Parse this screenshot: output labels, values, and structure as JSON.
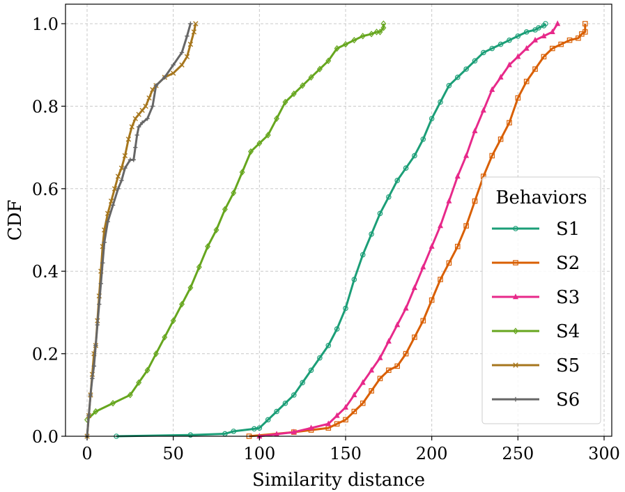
{
  "chart_data": {
    "type": "line",
    "title": "",
    "xlabel": "Similarity distance",
    "ylabel": "CDF",
    "xlim": [
      -12,
      300
    ],
    "ylim": [
      0,
      1.0
    ],
    "xticks": [
      0,
      50,
      100,
      150,
      200,
      250,
      300
    ],
    "yticks": [
      0.0,
      0.2,
      0.4,
      0.6,
      0.8,
      1.0
    ],
    "xtick_labels": [
      "0",
      "50",
      "100",
      "150",
      "200",
      "250",
      "300"
    ],
    "ytick_labels": [
      "0.0",
      "0.2",
      "0.4",
      "0.6",
      "0.8",
      "1.0"
    ],
    "grid": true,
    "legend": {
      "title": "Behaviors",
      "position": "center-right"
    },
    "series": [
      {
        "name": "S1",
        "color": "#1b9e77",
        "marker": "circle",
        "x": [
          17,
          60,
          80,
          85,
          97,
          100,
          105,
          110,
          115,
          120,
          125,
          130,
          135,
          140,
          145,
          150,
          155,
          160,
          165,
          170,
          175,
          180,
          185,
          190,
          195,
          200,
          205,
          210,
          215,
          220,
          225,
          230,
          235,
          240,
          245,
          250,
          255,
          260,
          262,
          265,
          266
        ],
        "y": [
          0.0,
          0.003,
          0.006,
          0.012,
          0.018,
          0.02,
          0.04,
          0.06,
          0.08,
          0.1,
          0.13,
          0.16,
          0.19,
          0.22,
          0.26,
          0.31,
          0.38,
          0.44,
          0.49,
          0.54,
          0.58,
          0.62,
          0.65,
          0.68,
          0.72,
          0.77,
          0.81,
          0.85,
          0.87,
          0.89,
          0.91,
          0.93,
          0.94,
          0.95,
          0.96,
          0.97,
          0.98,
          0.985,
          0.99,
          0.995,
          1.0
        ]
      },
      {
        "name": "S2",
        "color": "#d95f02",
        "marker": "square",
        "x": [
          94,
          120,
          130,
          140,
          145,
          150,
          155,
          160,
          165,
          170,
          175,
          180,
          185,
          190,
          195,
          200,
          205,
          210,
          215,
          220,
          225,
          230,
          235,
          240,
          245,
          250,
          255,
          260,
          265,
          270,
          275,
          280,
          285,
          287,
          289,
          289
        ],
        "y": [
          0.0,
          0.01,
          0.015,
          0.02,
          0.03,
          0.04,
          0.06,
          0.08,
          0.11,
          0.14,
          0.16,
          0.17,
          0.2,
          0.24,
          0.28,
          0.33,
          0.38,
          0.42,
          0.46,
          0.51,
          0.57,
          0.63,
          0.68,
          0.72,
          0.76,
          0.82,
          0.86,
          0.89,
          0.92,
          0.94,
          0.95,
          0.96,
          0.965,
          0.975,
          0.98,
          1.0
        ]
      },
      {
        "name": "S3",
        "color": "#e7298a",
        "marker": "triangle",
        "x": [
          100,
          110,
          120,
          130,
          140,
          145,
          150,
          155,
          160,
          165,
          170,
          175,
          180,
          185,
          190,
          195,
          200,
          205,
          210,
          215,
          220,
          225,
          230,
          235,
          240,
          245,
          250,
          255,
          260,
          265,
          270,
          273
        ],
        "y": [
          0.0,
          0.005,
          0.01,
          0.02,
          0.03,
          0.05,
          0.07,
          0.1,
          0.13,
          0.16,
          0.19,
          0.23,
          0.27,
          0.31,
          0.36,
          0.41,
          0.46,
          0.51,
          0.57,
          0.63,
          0.68,
          0.74,
          0.79,
          0.84,
          0.87,
          0.9,
          0.92,
          0.94,
          0.96,
          0.97,
          0.98,
          1.0
        ]
      },
      {
        "name": "S4",
        "color": "#66a61e",
        "marker": "diamond",
        "x": [
          0,
          5,
          15,
          25,
          30,
          35,
          40,
          45,
          50,
          55,
          60,
          65,
          70,
          75,
          80,
          85,
          90,
          95,
          100,
          105,
          110,
          115,
          120,
          125,
          130,
          135,
          140,
          145,
          150,
          155,
          160,
          165,
          168,
          170,
          172,
          172
        ],
        "y": [
          0.04,
          0.06,
          0.08,
          0.1,
          0.13,
          0.16,
          0.2,
          0.24,
          0.28,
          0.32,
          0.36,
          0.41,
          0.46,
          0.5,
          0.55,
          0.59,
          0.64,
          0.69,
          0.71,
          0.73,
          0.77,
          0.81,
          0.83,
          0.85,
          0.87,
          0.89,
          0.91,
          0.94,
          0.95,
          0.96,
          0.97,
          0.975,
          0.98,
          0.98,
          0.99,
          1.0
        ]
      },
      {
        "name": "S5",
        "color": "#a6761d",
        "marker": "x",
        "x": [
          0,
          1,
          2,
          3,
          4,
          5,
          6,
          7,
          8,
          9,
          10,
          12,
          14,
          16,
          18,
          20,
          22,
          24,
          26,
          28,
          30,
          32,
          34,
          36,
          38,
          40,
          45,
          50,
          55,
          58,
          60,
          62,
          63
        ],
        "y": [
          0.0,
          0.05,
          0.1,
          0.15,
          0.2,
          0.22,
          0.28,
          0.34,
          0.4,
          0.46,
          0.5,
          0.54,
          0.57,
          0.6,
          0.63,
          0.65,
          0.68,
          0.72,
          0.75,
          0.77,
          0.78,
          0.79,
          0.8,
          0.82,
          0.84,
          0.85,
          0.87,
          0.88,
          0.9,
          0.92,
          0.95,
          0.98,
          1.0
        ]
      },
      {
        "name": "S6",
        "color": "#666666",
        "marker": "plus",
        "x": [
          0,
          1,
          2,
          3,
          4,
          5,
          6,
          7,
          8,
          9,
          10,
          12,
          15,
          18,
          20,
          22,
          25,
          27,
          28,
          29,
          30,
          32,
          35,
          38,
          40,
          45,
          50,
          55,
          58,
          60
        ],
        "y": [
          0.0,
          0.05,
          0.1,
          0.14,
          0.17,
          0.22,
          0.27,
          0.32,
          0.37,
          0.42,
          0.47,
          0.52,
          0.56,
          0.6,
          0.62,
          0.65,
          0.67,
          0.67,
          0.7,
          0.73,
          0.75,
          0.76,
          0.77,
          0.8,
          0.85,
          0.87,
          0.9,
          0.93,
          0.97,
          1.0
        ]
      }
    ]
  }
}
